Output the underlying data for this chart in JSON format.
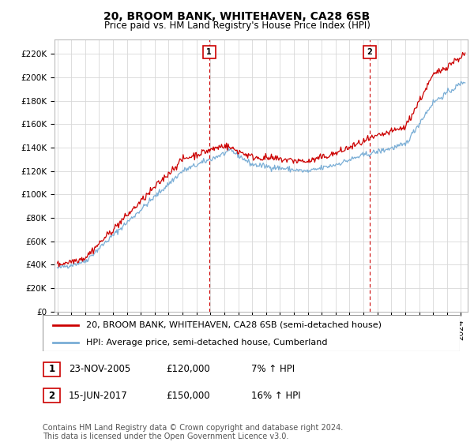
{
  "title": "20, BROOM BANK, WHITEHAVEN, CA28 6SB",
  "subtitle": "Price paid vs. HM Land Registry's House Price Index (HPI)",
  "ylabel_ticks": [
    "£0",
    "£20K",
    "£40K",
    "£60K",
    "£80K",
    "£100K",
    "£120K",
    "£140K",
    "£160K",
    "£180K",
    "£200K",
    "£220K"
  ],
  "ytick_values": [
    0,
    20000,
    40000,
    60000,
    80000,
    100000,
    120000,
    140000,
    160000,
    180000,
    200000,
    220000
  ],
  "ylim": [
    0,
    232000
  ],
  "xlim_start": 1994.8,
  "xlim_end": 2024.5,
  "background_color": "#ffffff",
  "grid_color": "#d8d8d8",
  "line_color_red": "#cc0000",
  "line_color_blue": "#7aaed6",
  "sale1_x": 2005.9,
  "sale1_y": 120000,
  "sale1_label": "1",
  "sale2_x": 2017.45,
  "sale2_y": 150000,
  "sale2_label": "2",
  "vline_color": "#cc0000",
  "legend_label_red": "20, BROOM BANK, WHITEHAVEN, CA28 6SB (semi-detached house)",
  "legend_label_blue": "HPI: Average price, semi-detached house, Cumberland",
  "table_row1": [
    "1",
    "23-NOV-2005",
    "£120,000",
    "7% ↑ HPI"
  ],
  "table_row2": [
    "2",
    "15-JUN-2017",
    "£150,000",
    "16% ↑ HPI"
  ],
  "footer": "Contains HM Land Registry data © Crown copyright and database right 2024.\nThis data is licensed under the Open Government Licence v3.0.",
  "title_fontsize": 10,
  "subtitle_fontsize": 8.5,
  "tick_fontsize": 7.5,
  "legend_fontsize": 8,
  "table_fontsize": 8.5,
  "footer_fontsize": 7
}
